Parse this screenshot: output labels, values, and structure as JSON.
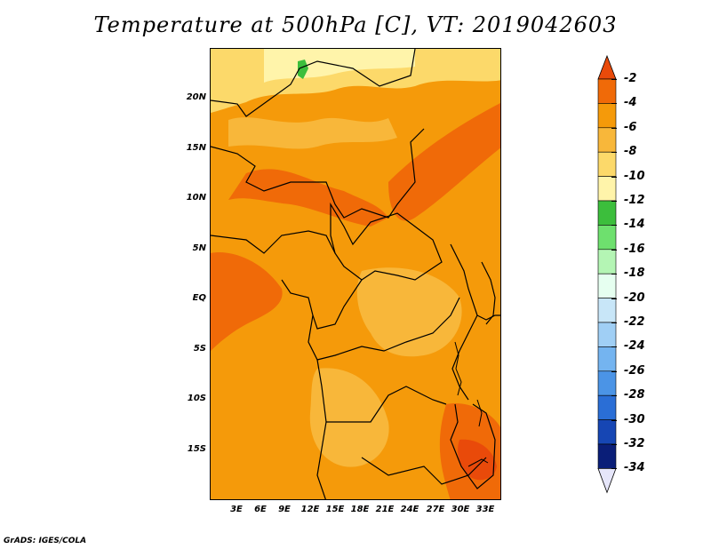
{
  "title": "Temperature at 500hPa [C], VT: 2019042603",
  "credit": "GrADS: IGES/COLA",
  "map": {
    "x_labels": [
      "3E",
      "6E",
      "9E",
      "12E",
      "15E",
      "18E",
      "21E",
      "24E",
      "27E",
      "30E",
      "33E"
    ],
    "y_labels": [
      "20N",
      "15N",
      "10N",
      "5N",
      "EQ",
      "5S",
      "10S",
      "15S"
    ]
  },
  "colorbar": {
    "labels": [
      "-2",
      "-4",
      "-6",
      "-8",
      "-10",
      "-12",
      "-14",
      "-16",
      "-18",
      "-20",
      "-22",
      "-24",
      "-26",
      "-28",
      "-30",
      "-32",
      "-34"
    ],
    "colors": [
      "#e94a0a",
      "#f06a08",
      "#f59a0a",
      "#f8b73a",
      "#fcd96a",
      "#fff4aa",
      "#3cbe3c",
      "#6ee06e",
      "#b4f5b4",
      "#e6fff0",
      "#c8e6f8",
      "#a0cff5",
      "#74b4f0",
      "#4b94e6",
      "#2a6ed6",
      "#1646b4",
      "#0a1e78",
      "#e6e6fa"
    ],
    "top_color": "#e94a0a",
    "bottom_color": "#e6e6fa"
  }
}
